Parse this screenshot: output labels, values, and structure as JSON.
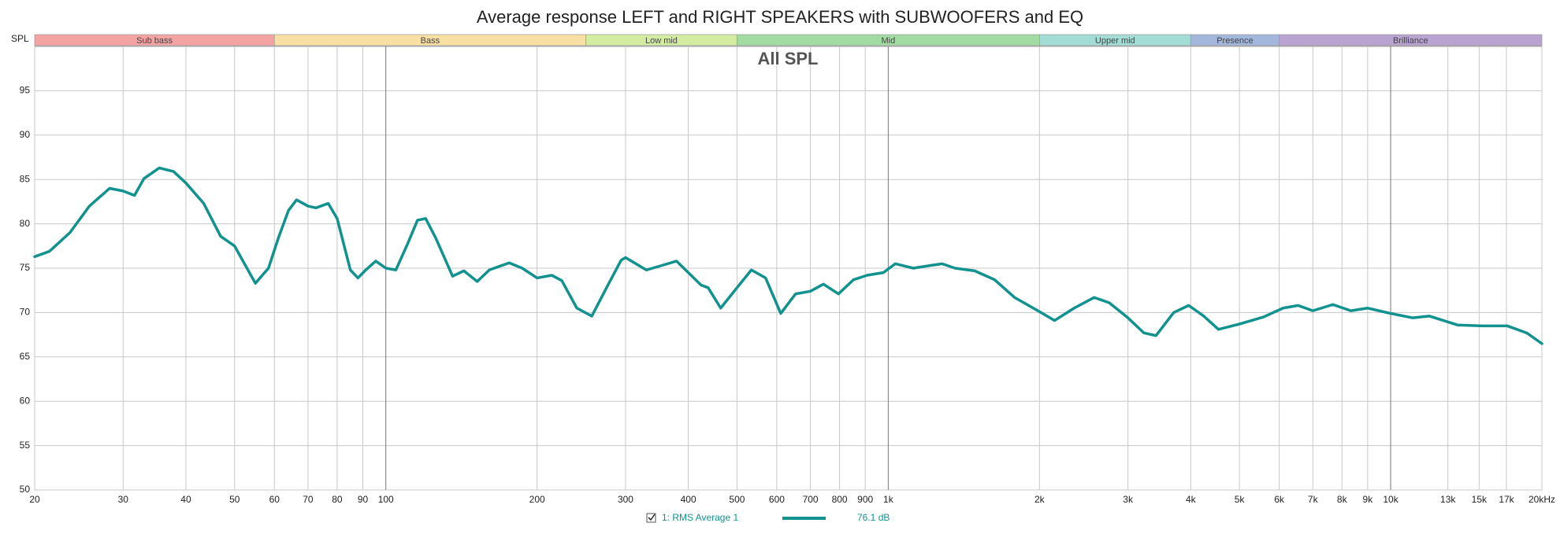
{
  "chart_data": {
    "type": "line",
    "title": "Average response LEFT and RIGHT SPEAKERS with SUBWOOFERS and EQ",
    "annotation": "All SPL",
    "y_label": "SPL",
    "x_scale": "log",
    "grid": true,
    "xlim": [
      20,
      20000
    ],
    "ylim": [
      50,
      100
    ],
    "yticks": [
      50,
      55,
      60,
      65,
      70,
      75,
      80,
      85,
      90,
      95
    ],
    "xticks": [
      20,
      30,
      40,
      50,
      60,
      70,
      80,
      90,
      100,
      200,
      300,
      400,
      500,
      600,
      700,
      800,
      900,
      {
        "value": 1000,
        "label": "1k"
      },
      {
        "value": 2000,
        "label": "2k"
      },
      {
        "value": 3000,
        "label": "3k"
      },
      {
        "value": 4000,
        "label": "4k"
      },
      {
        "value": 5000,
        "label": "5k"
      },
      {
        "value": 6000,
        "label": "6k"
      },
      {
        "value": 7000,
        "label": "7k"
      },
      {
        "value": 8000,
        "label": "8k"
      },
      {
        "value": 9000,
        "label": "9k"
      },
      {
        "value": 10000,
        "label": "10k"
      },
      {
        "value": 13000,
        "label": "13k"
      },
      {
        "value": 15000,
        "label": "15k"
      },
      {
        "value": 17000,
        "label": "17k"
      },
      {
        "value": 20000,
        "label": "20kHz"
      }
    ],
    "bands": [
      {
        "name": "Sub bass",
        "from": 20,
        "to": 60,
        "color": "#f4a3a3"
      },
      {
        "name": "Bass",
        "from": 60,
        "to": 250,
        "color": "#f8e0a4"
      },
      {
        "name": "Low mid",
        "from": 250,
        "to": 500,
        "color": "#d3eca2"
      },
      {
        "name": "Mid",
        "from": 500,
        "to": 2000,
        "color": "#a3dca3"
      },
      {
        "name": "Upper mid",
        "from": 2000,
        "to": 4000,
        "color": "#a3dcd5"
      },
      {
        "name": "Presence",
        "from": 4000,
        "to": 6000,
        "color": "#a3b6dc"
      },
      {
        "name": "Brilliance",
        "from": 6000,
        "to": 20000,
        "color": "#b9a3d1"
      }
    ],
    "x": [
      20,
      21.4,
      23.5,
      25.7,
      28.2,
      30,
      31.6,
      33,
      35.4,
      37.8,
      40,
      43.4,
      46.9,
      50,
      52.2,
      55,
      58.4,
      61.1,
      64,
      66.4,
      70,
      72.6,
      76.8,
      80,
      85,
      88,
      91.2,
      95.5,
      100,
      104.7,
      110.6,
      115.6,
      120,
      125.7,
      135.8,
      143,
      152,
      160.7,
      176,
      186.8,
      200,
      214,
      224,
      240,
      257,
      275,
      294,
      300,
      330,
      354,
      379,
      400,
      424,
      438,
      464,
      500,
      534,
      570,
      611,
      654,
      700,
      743,
      796,
      853,
      908,
      978,
      1033,
      1122,
      1211,
      1280,
      1358,
      1486,
      1628,
      1784,
      2000,
      2143,
      2345,
      2570,
      2754,
      3000,
      3228,
      3412,
      3700,
      3963,
      4246,
      4542,
      5000,
      5585,
      6109,
      6544,
      7000,
      7674,
      8333,
      8998,
      10000,
      11068,
      11950,
      13583,
      15214,
      17060,
      18660,
      20000
    ],
    "series": [
      {
        "name": "1: RMS Average 1",
        "legend_value": "76.1 dB",
        "color": "#11928f",
        "values": [
          76.3,
          76.9,
          79.0,
          82.0,
          84.0,
          83.7,
          83.2,
          85.1,
          86.3,
          85.9,
          84.6,
          82.3,
          78.6,
          77.5,
          75.6,
          73.3,
          75.0,
          78.4,
          81.5,
          82.7,
          82.0,
          81.8,
          82.3,
          80.6,
          74.8,
          73.9,
          74.8,
          75.8,
          75.0,
          74.8,
          77.8,
          80.4,
          80.6,
          78.4,
          74.1,
          74.7,
          73.5,
          74.8,
          75.6,
          75.0,
          73.9,
          74.2,
          73.6,
          70.5,
          69.6,
          72.8,
          75.9,
          76.2,
          74.8,
          75.3,
          75.8,
          74.5,
          73.1,
          72.8,
          70.5,
          72.8,
          74.8,
          73.9,
          69.9,
          72.1,
          72.4,
          73.2,
          72.1,
          73.7,
          74.2,
          74.5,
          75.5,
          75.0,
          75.3,
          75.5,
          75.0,
          74.7,
          73.7,
          71.7,
          70.1,
          69.1,
          70.5,
          71.7,
          71.1,
          69.4,
          67.7,
          67.4,
          70.0,
          70.8,
          69.6,
          68.1,
          68.7,
          69.5,
          70.5,
          70.8,
          70.2,
          70.9,
          70.2,
          70.5,
          69.9,
          69.4,
          69.6,
          68.6,
          68.5,
          68.5,
          67.7,
          66.5
        ]
      }
    ]
  }
}
